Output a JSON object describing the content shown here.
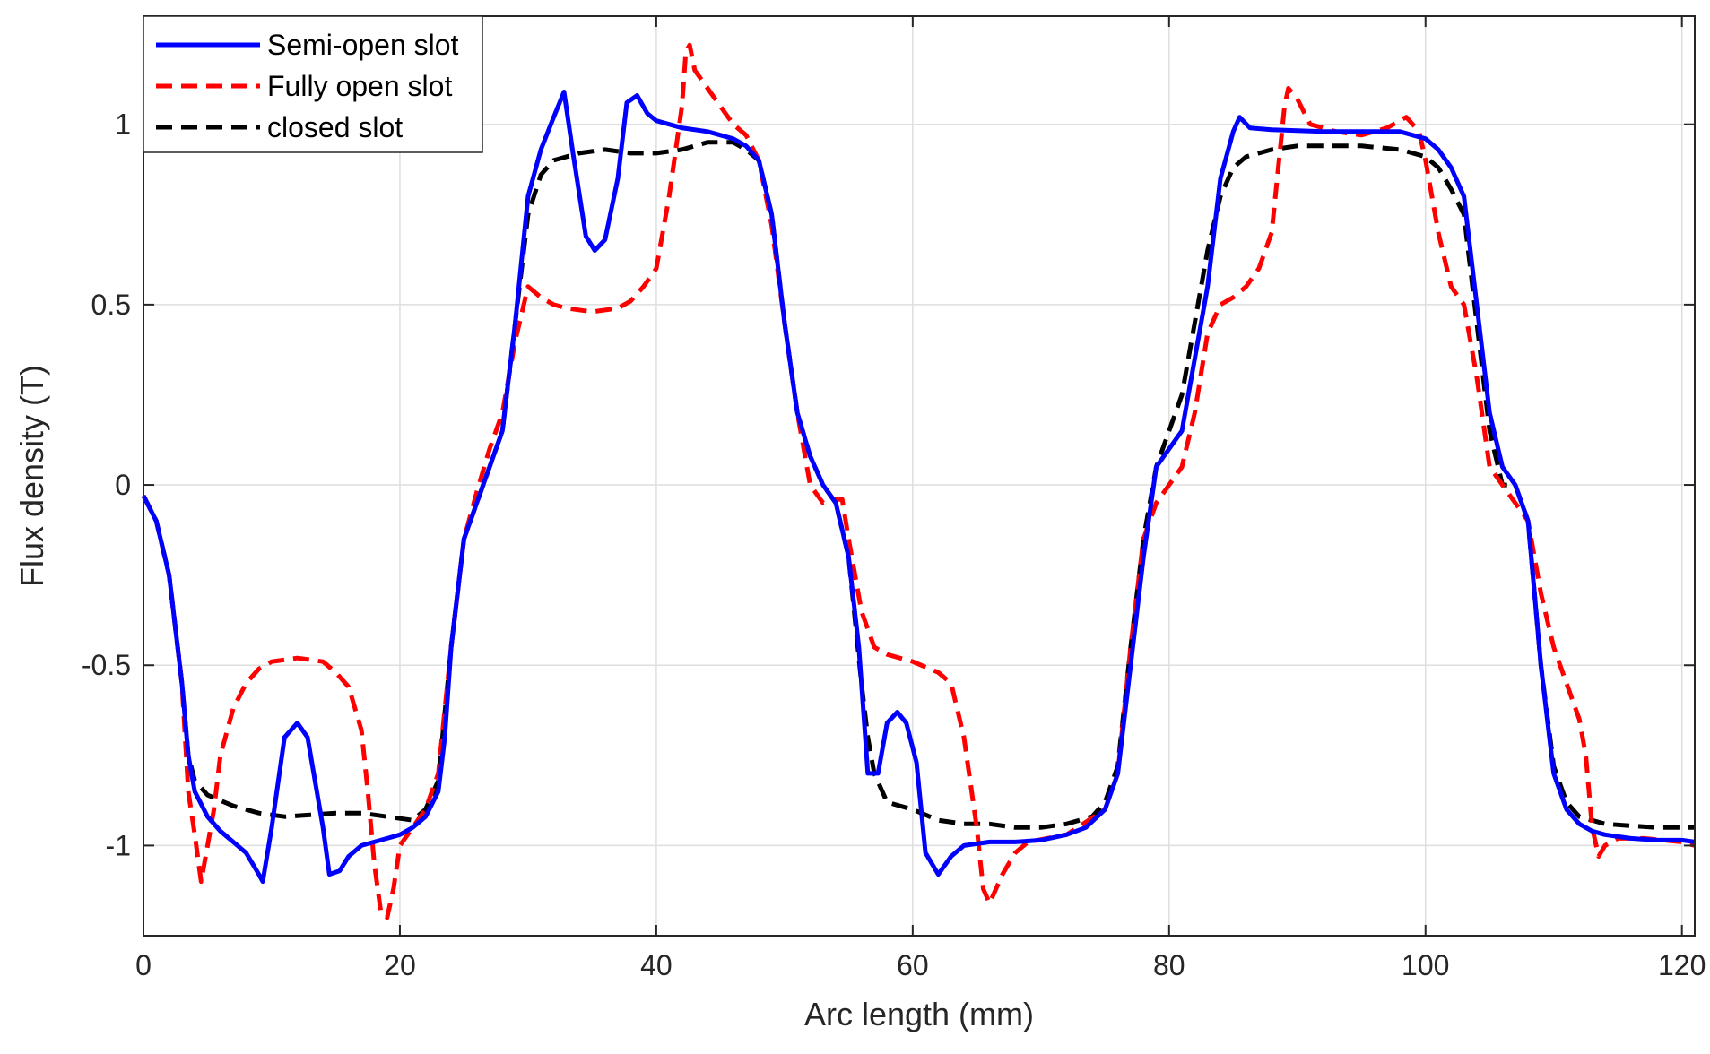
{
  "chart_data": {
    "type": "line",
    "title": "",
    "xlabel": "Arc length (mm)",
    "ylabel": "Flux density (T)",
    "xlim": [
      0,
      121
    ],
    "ylim": [
      -1.25,
      1.3
    ],
    "xticks": [
      0,
      20,
      40,
      60,
      80,
      100,
      120
    ],
    "xtick_labels": [
      "0",
      "20",
      "40",
      "60",
      "80",
      "100",
      "120"
    ],
    "yticks": [
      -1,
      -0.5,
      0,
      0.5,
      1
    ],
    "ytick_labels": [
      "-1",
      "-0.5",
      "0",
      "0.5",
      "1"
    ],
    "grid": true,
    "legend_position": "top-left",
    "series": [
      {
        "name": "Semi-open slot",
        "color": "#0000ff",
        "dash": "solid",
        "points": [
          [
            0,
            -0.03
          ],
          [
            1,
            -0.1
          ],
          [
            2,
            -0.25
          ],
          [
            3,
            -0.55
          ],
          [
            3.5,
            -0.75
          ],
          [
            4,
            -0.85
          ],
          [
            5,
            -0.92
          ],
          [
            6,
            -0.96
          ],
          [
            7,
            -0.99
          ],
          [
            8,
            -1.02
          ],
          [
            9,
            -1.08
          ],
          [
            9.3,
            -1.1
          ],
          [
            10,
            -0.95
          ],
          [
            11,
            -0.7
          ],
          [
            12,
            -0.66
          ],
          [
            12.8,
            -0.7
          ],
          [
            14,
            -0.95
          ],
          [
            14.5,
            -1.08
          ],
          [
            15.3,
            -1.07
          ],
          [
            16,
            -1.03
          ],
          [
            17,
            -1.0
          ],
          [
            18,
            -0.99
          ],
          [
            19,
            -0.98
          ],
          [
            20,
            -0.97
          ],
          [
            21,
            -0.95
          ],
          [
            22,
            -0.92
          ],
          [
            23,
            -0.85
          ],
          [
            23.5,
            -0.7
          ],
          [
            24,
            -0.45
          ],
          [
            25,
            -0.15
          ],
          [
            26,
            -0.05
          ],
          [
            27,
            0.05
          ],
          [
            28,
            0.15
          ],
          [
            29,
            0.45
          ],
          [
            30,
            0.8
          ],
          [
            31,
            0.93
          ],
          [
            32,
            1.02
          ],
          [
            32.8,
            1.09
          ],
          [
            33.5,
            0.92
          ],
          [
            34.5,
            0.69
          ],
          [
            35.2,
            0.65
          ],
          [
            36,
            0.68
          ],
          [
            37,
            0.85
          ],
          [
            37.7,
            1.06
          ],
          [
            38.5,
            1.08
          ],
          [
            39.3,
            1.03
          ],
          [
            40,
            1.01
          ],
          [
            42,
            0.99
          ],
          [
            44,
            0.98
          ],
          [
            46,
            0.96
          ],
          [
            47,
            0.94
          ],
          [
            48,
            0.9
          ],
          [
            49,
            0.75
          ],
          [
            50,
            0.45
          ],
          [
            51,
            0.2
          ],
          [
            52,
            0.08
          ],
          [
            53,
            0.0
          ],
          [
            54,
            -0.05
          ],
          [
            55,
            -0.2
          ],
          [
            55.8,
            -0.45
          ],
          [
            56.3,
            -0.7
          ],
          [
            56.5,
            -0.8
          ],
          [
            57.3,
            -0.8
          ],
          [
            58,
            -0.66
          ],
          [
            58.8,
            -0.63
          ],
          [
            59.5,
            -0.66
          ],
          [
            60.3,
            -0.77
          ],
          [
            61,
            -1.02
          ],
          [
            62,
            -1.08
          ],
          [
            63,
            -1.03
          ],
          [
            64,
            -1.0
          ],
          [
            66,
            -0.99
          ],
          [
            68,
            -0.99
          ],
          [
            70,
            -0.985
          ],
          [
            72,
            -0.97
          ],
          [
            73.5,
            -0.95
          ],
          [
            75,
            -0.9
          ],
          [
            76,
            -0.8
          ],
          [
            77,
            -0.5
          ],
          [
            78,
            -0.2
          ],
          [
            79,
            0.05
          ],
          [
            80,
            0.1
          ],
          [
            81,
            0.15
          ],
          [
            82,
            0.35
          ],
          [
            83,
            0.55
          ],
          [
            84,
            0.85
          ],
          [
            85,
            0.98
          ],
          [
            85.5,
            1.02
          ],
          [
            86.3,
            0.99
          ],
          [
            88,
            0.985
          ],
          [
            92,
            0.98
          ],
          [
            95,
            0.98
          ],
          [
            98,
            0.98
          ],
          [
            100,
            0.96
          ],
          [
            101,
            0.93
          ],
          [
            102,
            0.88
          ],
          [
            103,
            0.8
          ],
          [
            104,
            0.5
          ],
          [
            105,
            0.2
          ],
          [
            106,
            0.05
          ],
          [
            107,
            0.0
          ],
          [
            108,
            -0.1
          ],
          [
            109,
            -0.5
          ],
          [
            110,
            -0.8
          ],
          [
            111,
            -0.9
          ],
          [
            112,
            -0.94
          ],
          [
            113,
            -0.96
          ],
          [
            114,
            -0.97
          ],
          [
            116,
            -0.98
          ],
          [
            118,
            -0.985
          ],
          [
            120,
            -0.985
          ],
          [
            121,
            -0.99
          ]
        ]
      },
      {
        "name": "Fully open slot",
        "color": "#ff0000",
        "dash": "dashed",
        "points": [
          [
            0,
            -0.03
          ],
          [
            1,
            -0.1
          ],
          [
            2,
            -0.25
          ],
          [
            3,
            -0.55
          ],
          [
            3.5,
            -0.85
          ],
          [
            4,
            -0.97
          ],
          [
            4.5,
            -1.1
          ],
          [
            5,
            -1.0
          ],
          [
            5.5,
            -0.9
          ],
          [
            6,
            -0.75
          ],
          [
            7,
            -0.62
          ],
          [
            8,
            -0.55
          ],
          [
            9,
            -0.51
          ],
          [
            10,
            -0.49
          ],
          [
            12,
            -0.48
          ],
          [
            14,
            -0.49
          ],
          [
            15,
            -0.52
          ],
          [
            16,
            -0.56
          ],
          [
            17,
            -0.68
          ],
          [
            17.5,
            -0.85
          ],
          [
            18,
            -1.05
          ],
          [
            18.5,
            -1.18
          ],
          [
            19,
            -1.2
          ],
          [
            19.5,
            -1.12
          ],
          [
            20,
            -1.0
          ],
          [
            21,
            -0.95
          ],
          [
            22,
            -0.9
          ],
          [
            23,
            -0.8
          ],
          [
            24,
            -0.45
          ],
          [
            25,
            -0.15
          ],
          [
            26,
            -0.02
          ],
          [
            27,
            0.1
          ],
          [
            28,
            0.2
          ],
          [
            29,
            0.4
          ],
          [
            30,
            0.55
          ],
          [
            31,
            0.52
          ],
          [
            32,
            0.5
          ],
          [
            33,
            0.49
          ],
          [
            35,
            0.48
          ],
          [
            37,
            0.49
          ],
          [
            38,
            0.51
          ],
          [
            39,
            0.55
          ],
          [
            40,
            0.6
          ],
          [
            41,
            0.8
          ],
          [
            42,
            1.05
          ],
          [
            42.3,
            1.2
          ],
          [
            42.6,
            1.22
          ],
          [
            43,
            1.15
          ],
          [
            44,
            1.1
          ],
          [
            45,
            1.05
          ],
          [
            46,
            1.0
          ],
          [
            47,
            0.97
          ],
          [
            48,
            0.9
          ],
          [
            49,
            0.72
          ],
          [
            50,
            0.45
          ],
          [
            51,
            0.2
          ],
          [
            52,
            0.0
          ],
          [
            53,
            -0.05
          ],
          [
            54,
            -0.04
          ],
          [
            54.5,
            -0.04
          ],
          [
            55,
            -0.15
          ],
          [
            56,
            -0.35
          ],
          [
            57,
            -0.45
          ],
          [
            58,
            -0.47
          ],
          [
            60,
            -0.49
          ],
          [
            62,
            -0.52
          ],
          [
            63,
            -0.55
          ],
          [
            64,
            -0.7
          ],
          [
            65,
            -0.95
          ],
          [
            65.5,
            -1.12
          ],
          [
            66,
            -1.16
          ],
          [
            67,
            -1.08
          ],
          [
            68,
            -1.02
          ],
          [
            69,
            -0.99
          ],
          [
            72,
            -0.97
          ],
          [
            75,
            -0.9
          ],
          [
            76,
            -0.8
          ],
          [
            77,
            -0.45
          ],
          [
            78,
            -0.15
          ],
          [
            79,
            -0.05
          ],
          [
            80,
            0.0
          ],
          [
            81,
            0.05
          ],
          [
            82,
            0.2
          ],
          [
            83,
            0.42
          ],
          [
            84,
            0.5
          ],
          [
            85,
            0.52
          ],
          [
            86,
            0.55
          ],
          [
            87,
            0.6
          ],
          [
            88,
            0.7
          ],
          [
            89,
            1.05
          ],
          [
            89.3,
            1.1
          ],
          [
            90,
            1.07
          ],
          [
            91,
            1.0
          ],
          [
            93,
            0.98
          ],
          [
            95,
            0.97
          ],
          [
            97,
            0.99
          ],
          [
            98.5,
            1.02
          ],
          [
            99.5,
            0.98
          ],
          [
            100,
            0.9
          ],
          [
            101,
            0.7
          ],
          [
            102,
            0.55
          ],
          [
            103,
            0.5
          ],
          [
            104,
            0.3
          ],
          [
            105,
            0.05
          ],
          [
            106,
            0.0
          ],
          [
            107,
            -0.05
          ],
          [
            108,
            -0.1
          ],
          [
            109,
            -0.3
          ],
          [
            110,
            -0.45
          ],
          [
            111,
            -0.55
          ],
          [
            112,
            -0.65
          ],
          [
            112.5,
            -0.75
          ],
          [
            113,
            -0.95
          ],
          [
            113.5,
            -1.03
          ],
          [
            114,
            -1.0
          ],
          [
            115,
            -0.98
          ],
          [
            117,
            -0.98
          ],
          [
            120,
            -0.99
          ],
          [
            121,
            -1.0
          ]
        ]
      },
      {
        "name": "closed slot",
        "color": "#000000",
        "dash": "dashed",
        "points": [
          [
            0,
            -0.03
          ],
          [
            1,
            -0.1
          ],
          [
            2,
            -0.25
          ],
          [
            3,
            -0.55
          ],
          [
            3.5,
            -0.75
          ],
          [
            4,
            -0.82
          ],
          [
            5,
            -0.86
          ],
          [
            7,
            -0.89
          ],
          [
            9,
            -0.91
          ],
          [
            11,
            -0.92
          ],
          [
            13,
            -0.915
          ],
          [
            15,
            -0.91
          ],
          [
            17,
            -0.91
          ],
          [
            19,
            -0.92
          ],
          [
            21,
            -0.93
          ],
          [
            22,
            -0.9
          ],
          [
            23,
            -0.82
          ],
          [
            24,
            -0.45
          ],
          [
            25,
            -0.15
          ],
          [
            26,
            -0.05
          ],
          [
            27,
            0.05
          ],
          [
            28,
            0.15
          ],
          [
            29,
            0.45
          ],
          [
            30,
            0.75
          ],
          [
            31,
            0.86
          ],
          [
            32,
            0.9
          ],
          [
            34,
            0.92
          ],
          [
            36,
            0.93
          ],
          [
            38,
            0.92
          ],
          [
            40,
            0.92
          ],
          [
            42,
            0.93
          ],
          [
            44,
            0.95
          ],
          [
            46,
            0.95
          ],
          [
            47,
            0.93
          ],
          [
            48,
            0.9
          ],
          [
            49,
            0.75
          ],
          [
            50,
            0.45
          ],
          [
            51,
            0.2
          ],
          [
            52,
            0.08
          ],
          [
            53,
            0.0
          ],
          [
            54,
            -0.05
          ],
          [
            55,
            -0.2
          ],
          [
            56,
            -0.55
          ],
          [
            56.5,
            -0.7
          ],
          [
            57,
            -0.8
          ],
          [
            58,
            -0.88
          ],
          [
            60,
            -0.9
          ],
          [
            62,
            -0.93
          ],
          [
            64,
            -0.94
          ],
          [
            66,
            -0.94
          ],
          [
            68,
            -0.95
          ],
          [
            70,
            -0.95
          ],
          [
            72,
            -0.94
          ],
          [
            74,
            -0.92
          ],
          [
            75,
            -0.88
          ],
          [
            76,
            -0.78
          ],
          [
            77,
            -0.45
          ],
          [
            78,
            -0.15
          ],
          [
            79,
            0.05
          ],
          [
            80,
            0.15
          ],
          [
            81,
            0.25
          ],
          [
            82,
            0.45
          ],
          [
            83,
            0.65
          ],
          [
            84,
            0.8
          ],
          [
            85,
            0.88
          ],
          [
            86,
            0.91
          ],
          [
            88,
            0.93
          ],
          [
            90,
            0.94
          ],
          [
            92,
            0.94
          ],
          [
            95,
            0.94
          ],
          [
            98,
            0.93
          ],
          [
            100,
            0.91
          ],
          [
            101,
            0.88
          ],
          [
            102,
            0.82
          ],
          [
            103,
            0.75
          ],
          [
            104,
            0.45
          ],
          [
            105,
            0.15
          ],
          [
            106,
            0.0
          ],
          [
            107,
            0.0
          ],
          [
            108,
            -0.1
          ],
          [
            109,
            -0.5
          ],
          [
            110,
            -0.78
          ],
          [
            111,
            -0.88
          ],
          [
            112,
            -0.92
          ],
          [
            114,
            -0.94
          ],
          [
            116,
            -0.945
          ],
          [
            118,
            -0.95
          ],
          [
            121,
            -0.95
          ]
        ]
      }
    ]
  }
}
